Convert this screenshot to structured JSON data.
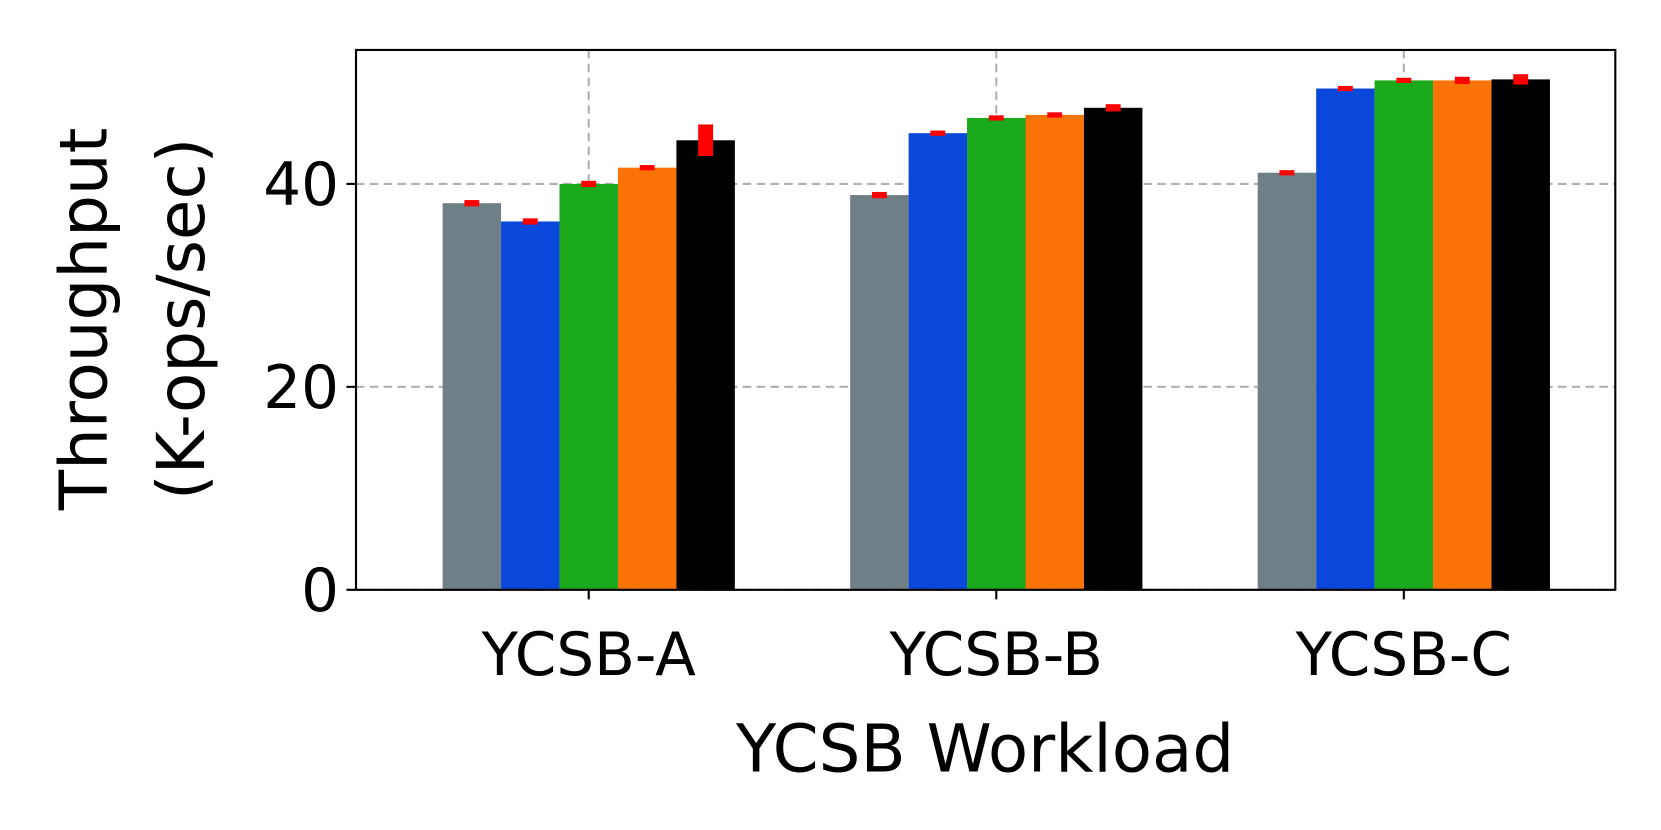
{
  "chart_data": {
    "type": "bar",
    "xlabel": "YCSB Workload",
    "ylabel": [
      "Throughput",
      "(K-ops/sec)"
    ],
    "categories": [
      "YCSB-A",
      "YCSB-B",
      "YCSB-C"
    ],
    "series": [
      {
        "color": "#6e7f86",
        "values": [
          38.1,
          38.9,
          41.1
        ],
        "errors": [
          0.15,
          0.15,
          0.1
        ]
      },
      {
        "color": "#0a47db",
        "values": [
          36.3,
          45.0,
          49.4
        ],
        "errors": [
          0.15,
          0.1,
          0.1
        ]
      },
      {
        "color": "#19a91b",
        "values": [
          40.0,
          46.5,
          50.2
        ],
        "errors": [
          0.15,
          0.1,
          0.1
        ]
      },
      {
        "color": "#f97306",
        "values": [
          41.6,
          46.8,
          50.2
        ],
        "errors": [
          0.1,
          0.1,
          0.2
        ]
      },
      {
        "color": "#000000",
        "values": [
          44.3,
          47.5,
          50.3
        ],
        "errors": [
          1.4,
          0.2,
          0.35
        ]
      }
    ],
    "error_color": "#ff0000",
    "ylim": [
      0,
      53.2
    ],
    "yticks": [
      0,
      20,
      40
    ],
    "grid": true
  }
}
